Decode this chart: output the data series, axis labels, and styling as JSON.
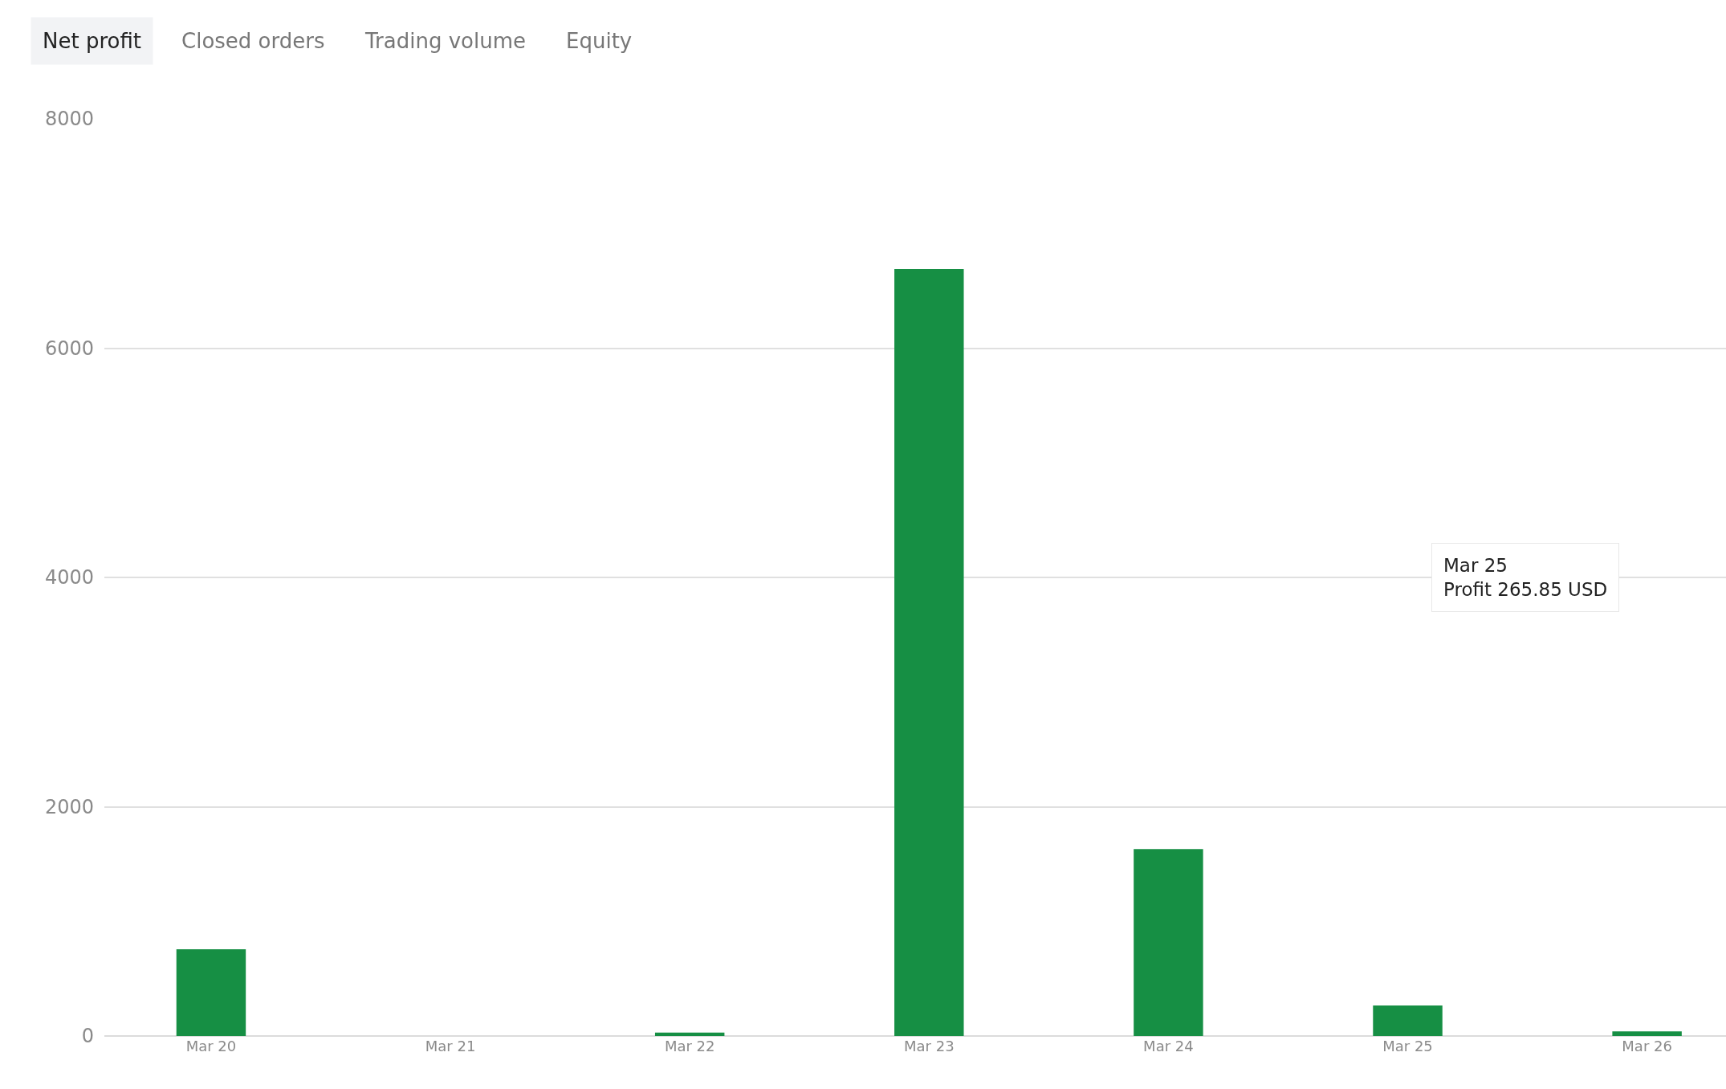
{
  "chart_data": {
    "type": "bar",
    "categories": [
      "Mar 20",
      "Mar 21",
      "Mar 22",
      "Mar 23",
      "Mar 24",
      "Mar 25",
      "Mar 26"
    ],
    "values": [
      757,
      0,
      30,
      6690,
      1630,
      265.85,
      40
    ],
    "color": "#168f44",
    "ylim": [
      0,
      8000
    ],
    "yticks": [
      0,
      2000,
      4000,
      6000,
      8000
    ],
    "grid": "y",
    "annotations": [
      "Net profit",
      "Closed orders",
      "Trading volume",
      "Equity",
      "Mar 25\nProfit 265.85 USD"
    ]
  }
}
